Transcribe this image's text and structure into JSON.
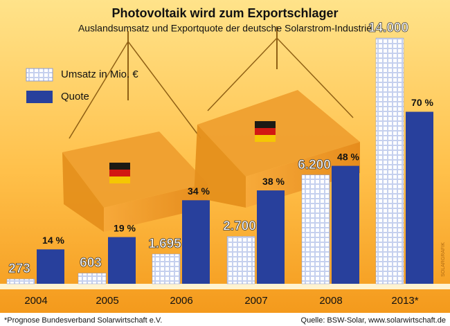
{
  "chart_data": {
    "type": "bar",
    "title": "Photovoltaik wird zum Exportschlager",
    "subtitle": "Auslandsumsatz und Exportquote der deutsche Solarstrom-Industrie",
    "categories": [
      "2004",
      "2005",
      "2006",
      "2007",
      "2008",
      "2013*"
    ],
    "series": [
      {
        "name": "Umsatz in Mio. €",
        "color": "#c5d0ee",
        "values": [
          273,
          603,
          1695,
          2700,
          6200,
          14000
        ],
        "value_labels": [
          "273",
          "603",
          "1.695",
          "2.700",
          "6.200",
          "14.000"
        ]
      },
      {
        "name": "Quote",
        "color": "#28409c",
        "axis": "y2",
        "values": [
          14,
          19,
          34,
          38,
          48,
          70
        ],
        "value_labels": [
          "14 %",
          "19 %",
          "34 %",
          "38 %",
          "48 %",
          "70 %"
        ]
      }
    ],
    "ylim": [
      0,
      14000
    ],
    "y2lim": [
      0,
      100
    ],
    "footnote": "*Prognose Bundesverband Solarwirtschaft e.V.",
    "source": "Quelle: BSW-Solar, www.solarwirtschaft.de",
    "credit": "SOLARGRAFIK"
  }
}
